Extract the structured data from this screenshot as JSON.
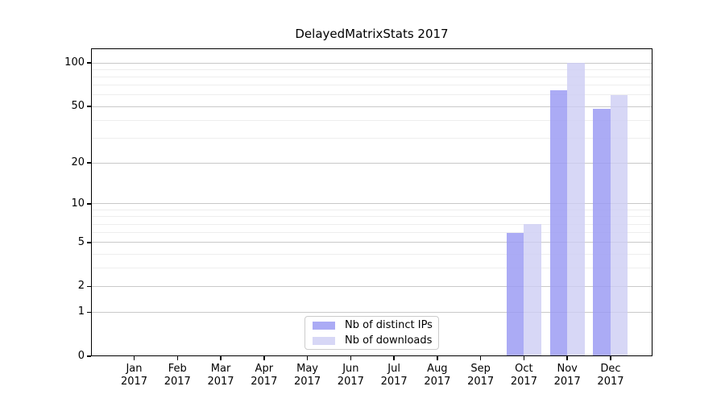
{
  "figure": {
    "title": "DelayedMatrixStats 2017"
  },
  "legend": {
    "position": "lower center"
  },
  "colors": {
    "bar_distinct_ips": "rgba(155,155,243,0.84)",
    "bar_downloads": "rgba(205,205,244,0.8)",
    "bar_distinct_ips_hex": "#a9a9f6",
    "bar_downloads_hex": "#d9d9f6",
    "major_gridline": "#c9c9c9",
    "minor_gridline": "#eeeeee",
    "axis": "#000000"
  },
  "chart_data": {
    "type": "bar",
    "title": "DelayedMatrixStats 2017",
    "categories": [
      "Jan",
      "Feb",
      "Mar",
      "Apr",
      "May",
      "Jun",
      "Jul",
      "Aug",
      "Sep",
      "Oct",
      "Nov",
      "Dec"
    ],
    "x_year_label": "2017",
    "series": [
      {
        "name": "Nb of distinct IPs",
        "color": "rgba(155,155,243,0.84)",
        "values": [
          0,
          0,
          0,
          0,
          0,
          0,
          0,
          0,
          0,
          6,
          65,
          48
        ]
      },
      {
        "name": "Nb of downloads",
        "color": "rgba(205,205,244,0.8)",
        "values": [
          0,
          0,
          0,
          0,
          0,
          0,
          0,
          0,
          0,
          7,
          100,
          60
        ]
      }
    ],
    "xlabel": "",
    "ylabel": "",
    "yscale": "log10(value+1)",
    "yticks": [
      0,
      1,
      2,
      5,
      10,
      20,
      50,
      100
    ],
    "minor_yticks": [
      3,
      4,
      6,
      7,
      8,
      9,
      30,
      40,
      60,
      70,
      80,
      90
    ],
    "ylim": [
      0,
      126
    ],
    "grid": "horizontal",
    "legend_position": "lower center"
  }
}
